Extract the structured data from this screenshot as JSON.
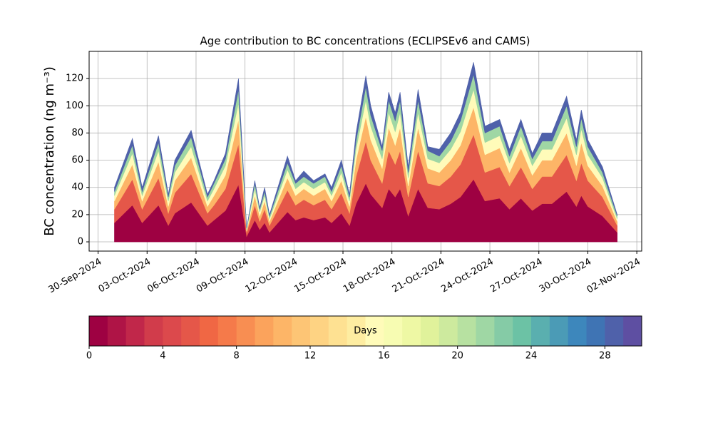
{
  "chart_data": {
    "type": "stacked-area",
    "title": "Age contribution to BC concentrations (ECLIPSEv6 and CAMS)",
    "y_label": "BC concentration (ng m⁻³)",
    "x": [
      1.0,
      2.1,
      2.7,
      3.7,
      4.3,
      4.7,
      5.7,
      6.7,
      7.1,
      7.8,
      8.6,
      9.1,
      9.6,
      9.9,
      10.2,
      10.5,
      11.6,
      12.1,
      12.6,
      13.2,
      13.9,
      14.3,
      14.9,
      15.4,
      15.8,
      16.4,
      16.7,
      17.4,
      17.8,
      18.2,
      18.5,
      19.0,
      19.6,
      20.2,
      20.9,
      21.6,
      22.2,
      23.0,
      23.7,
      24.6,
      25.2,
      25.9,
      26.6,
      27.2,
      27.8,
      28.7,
      29.3,
      29.6,
      30.0,
      30.9,
      31.8
    ],
    "series": [
      {
        "color": "#9e0142",
        "values": [
          14,
          27,
          14,
          27,
          12,
          21,
          29,
          12,
          16,
          23,
          42,
          4,
          16,
          9,
          14,
          7,
          22,
          16,
          18,
          16,
          18,
          14,
          21,
          12,
          28,
          43,
          35,
          25,
          39,
          33,
          39,
          19,
          39,
          25,
          24,
          28,
          33,
          46,
          30,
          32,
          24,
          32,
          23,
          28,
          28,
          37,
          26,
          34,
          26,
          19,
          7
        ]
      },
      {
        "color": "#e55749",
        "values": [
          10,
          19,
          10,
          20,
          9,
          15,
          21,
          9,
          11,
          16,
          30,
          3,
          11,
          6,
          10,
          5,
          16,
          11,
          13,
          11,
          13,
          10,
          15,
          9,
          20,
          31,
          25,
          18,
          28,
          24,
          28,
          14,
          28,
          18,
          17,
          20,
          24,
          33,
          21,
          23,
          17,
          23,
          16,
          20,
          20,
          27,
          19,
          24,
          19,
          14,
          5
        ]
      },
      {
        "color": "#fdb567",
        "values": [
          6,
          11,
          6,
          12,
          5,
          9,
          12,
          5,
          7,
          10,
          18,
          1,
          7,
          4,
          6,
          3,
          9,
          7,
          8,
          7,
          8,
          6,
          9,
          5,
          12,
          18,
          15,
          11,
          17,
          14,
          17,
          8,
          17,
          11,
          10,
          12,
          14,
          20,
          13,
          14,
          10,
          14,
          10,
          12,
          12,
          16,
          11,
          15,
          11,
          8,
          3
        ]
      },
      {
        "color": "#fffbb9",
        "values": [
          4,
          8,
          4,
          8,
          4,
          6,
          8,
          4,
          5,
          7,
          12,
          1,
          5,
          3,
          4,
          2,
          6,
          5,
          5,
          5,
          5,
          4,
          6,
          4,
          8,
          12,
          10,
          7,
          11,
          10,
          11,
          6,
          11,
          7,
          7,
          8,
          10,
          13,
          9,
          9,
          7,
          9,
          7,
          8,
          8,
          11,
          8,
          10,
          8,
          6,
          2
        ]
      },
      {
        "color": "#9fd7a4",
        "values": [
          3,
          6,
          3,
          6,
          3,
          5,
          7,
          3,
          4,
          5,
          10,
          1,
          4,
          2,
          3,
          2,
          5,
          4,
          4,
          4,
          4,
          3,
          5,
          3,
          6,
          10,
          8,
          6,
          9,
          8,
          9,
          4,
          9,
          6,
          5,
          6,
          8,
          11,
          7,
          7,
          5,
          7,
          5,
          6,
          6,
          9,
          6,
          8,
          6,
          4,
          2
        ]
      },
      {
        "color": "#4f61aa",
        "values": [
          3,
          5,
          3,
          5,
          2,
          4,
          5,
          2,
          2,
          4,
          8,
          0,
          2,
          1,
          3,
          1,
          5,
          2,
          4,
          2,
          2,
          3,
          4,
          2,
          6,
          8,
          7,
          3,
          6,
          6,
          6,
          4,
          8,
          3,
          5,
          6,
          6,
          9,
          5,
          5,
          5,
          5,
          4,
          6,
          6,
          7,
          5,
          6,
          5,
          4,
          1
        ]
      }
    ],
    "xlim": [
      -0.55,
      33.3
    ],
    "xticks": [
      {
        "value": 0,
        "label": "30-Sep-2024"
      },
      {
        "value": 3,
        "label": "03-Oct-2024"
      },
      {
        "value": 6,
        "label": "06-Oct-2024"
      },
      {
        "value": 9,
        "label": "09-Oct-2024"
      },
      {
        "value": 12,
        "label": "12-Oct-2024"
      },
      {
        "value": 15,
        "label": "15-Oct-2024"
      },
      {
        "value": 18,
        "label": "18-Oct-2024"
      },
      {
        "value": 21,
        "label": "21-Oct-2024"
      },
      {
        "value": 24,
        "label": "24-Oct-2024"
      },
      {
        "value": 27,
        "label": "27-Oct-2024"
      },
      {
        "value": 30,
        "label": "30-Oct-2024"
      },
      {
        "value": 33,
        "label": "02-Nov-2024"
      }
    ],
    "ylim": [
      -6.8,
      140
    ],
    "yticks": [
      0,
      20,
      40,
      60,
      80,
      100,
      120
    ],
    "grid": true,
    "colorbar": {
      "label": "Days",
      "lim": [
        0,
        30
      ],
      "ticks": [
        0,
        4,
        8,
        12,
        16,
        20,
        24,
        28
      ],
      "colors": [
        "#9e0142",
        "#af1446",
        "#c1274a",
        "#d13c4b",
        "#dc494c",
        "#e55749",
        "#f06744",
        "#f57a4a",
        "#f88e52",
        "#fba35c",
        "#fdb567",
        "#fdc575",
        "#fed383",
        "#fee192",
        "#feeda1",
        "#fffbb9",
        "#f7fcb2",
        "#eef8a4",
        "#e0f29b",
        "#cdea9e",
        "#b7e1a1",
        "#9fd7a4",
        "#85cba6",
        "#6cc2a5",
        "#5aafaf",
        "#4b9bb6",
        "#3d87bc",
        "#3f74b4",
        "#4f61aa",
        "#5e4fa2"
      ]
    }
  }
}
